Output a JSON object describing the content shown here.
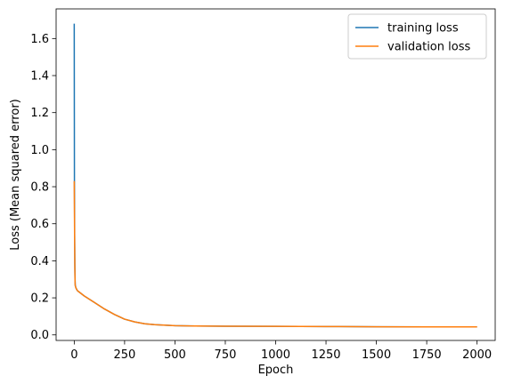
{
  "chart_data": {
    "type": "line",
    "xlabel": "Epoch",
    "ylabel": "Loss (Mean squared error)",
    "xlim": [
      -90,
      2090
    ],
    "ylim": [
      -0.03,
      1.76
    ],
    "grid": false,
    "legend_position": "top-right",
    "x_ticks": [
      0,
      250,
      500,
      750,
      1000,
      1250,
      1500,
      1750,
      2000
    ],
    "x_tick_labels": [
      "0",
      "250",
      "500",
      "750",
      "1000",
      "1250",
      "1500",
      "1750",
      "2000"
    ],
    "y_ticks": [
      0.0,
      0.2,
      0.4,
      0.6,
      0.8,
      1.0,
      1.2,
      1.4,
      1.6
    ],
    "y_tick_labels": [
      "0.0",
      "0.2",
      "0.4",
      "0.6",
      "0.8",
      "1.0",
      "1.2",
      "1.4",
      "1.6"
    ],
    "series": [
      {
        "name": "training loss",
        "color": "#1f77b4",
        "x": [
          0,
          1,
          2,
          3,
          4,
          5,
          8,
          10,
          15,
          20,
          50,
          100,
          150,
          200,
          250,
          300,
          350,
          400,
          500,
          600,
          750,
          1000,
          1250,
          1500,
          1750,
          2000
        ],
        "y": [
          1.68,
          0.83,
          0.55,
          0.38,
          0.3,
          0.27,
          0.255,
          0.25,
          0.24,
          0.235,
          0.21,
          0.175,
          0.14,
          0.11,
          0.085,
          0.07,
          0.06,
          0.055,
          0.05,
          0.048,
          0.047,
          0.046,
          0.045,
          0.044,
          0.043,
          0.043
        ]
      },
      {
        "name": "validation loss",
        "color": "#ff7f0e",
        "x": [
          0,
          2,
          3,
          4,
          5,
          8,
          10,
          15,
          20,
          50,
          100,
          150,
          200,
          250,
          300,
          350,
          400,
          500,
          600,
          750,
          1000,
          1250,
          1500,
          1750,
          2000
        ],
        "y": [
          0.83,
          0.5,
          0.36,
          0.29,
          0.265,
          0.255,
          0.25,
          0.24,
          0.235,
          0.21,
          0.175,
          0.14,
          0.11,
          0.085,
          0.07,
          0.06,
          0.055,
          0.05,
          0.048,
          0.047,
          0.046,
          0.045,
          0.044,
          0.043,
          0.043
        ]
      }
    ]
  }
}
